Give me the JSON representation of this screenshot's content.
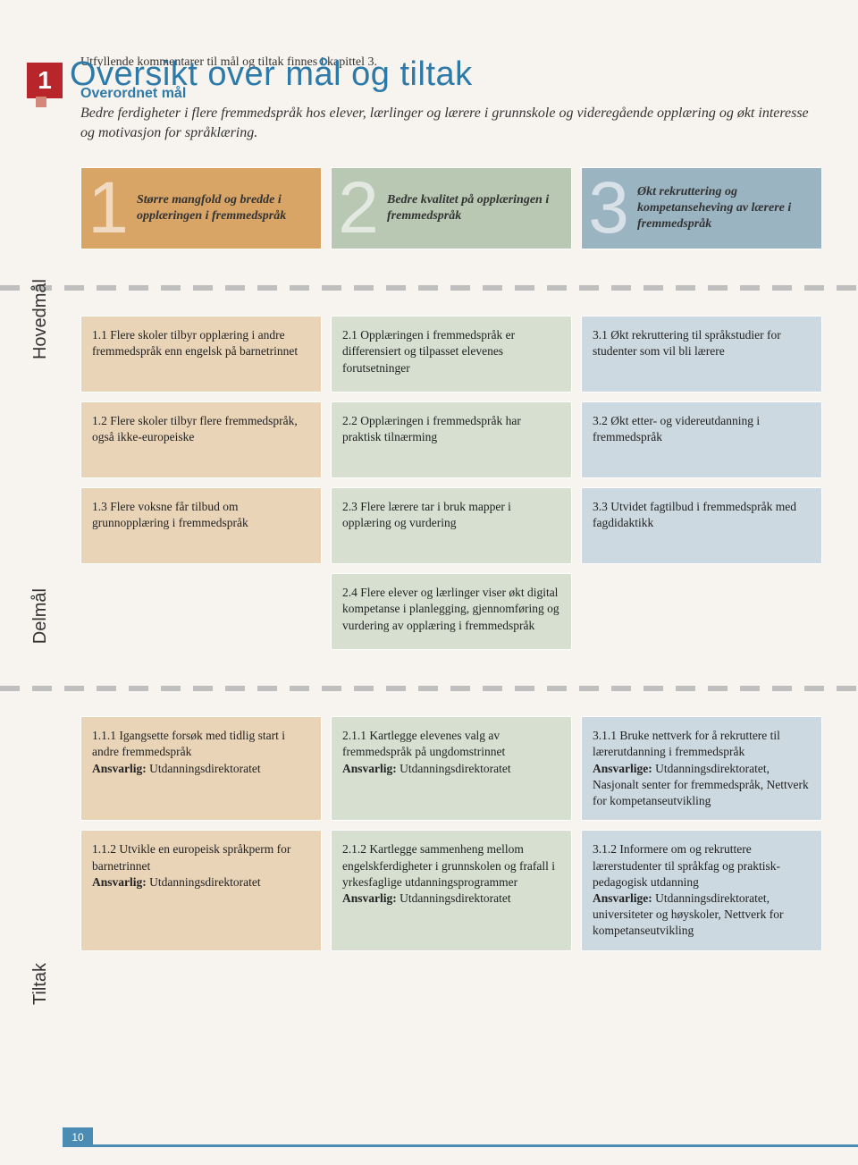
{
  "chapter_number": "1",
  "chapter_title": "Oversikt over mål og tiltak",
  "subtitle": "Utfyllende kommentarer til mål og tiltak finnes i kapittel 3.",
  "overordnet": {
    "label": "Overordnet mål",
    "body": "Bedre ferdigheter i flere fremmedspråk hos elever, lærlinger og lærere i grunnskole og videregående opplæring og økt interesse og motivasjon for språklæring."
  },
  "vertical_labels": {
    "hovedmal": "Hovedmål",
    "delmal": "Delmål",
    "tiltak": "Tiltak"
  },
  "goals": [
    {
      "num": "1",
      "text": "Større mangfold og bredde i opplæringen i fremmedspråk"
    },
    {
      "num": "2",
      "text": "Bedre kvalitet på opplæringen i fremmedspråk"
    },
    {
      "num": "3",
      "text": "Økt rekruttering og kompetanseheving av lærere i fremmedspråk"
    }
  ],
  "colors": {
    "goal_bg": [
      "#d9a566",
      "#b9c8b3",
      "#9bb4c2"
    ],
    "cell_bg": [
      "#e9d4b8",
      "#d7dfd1",
      "#cdd9e0"
    ],
    "accent_red": "#b8252a",
    "accent_blue": "#2d7aa8",
    "page_bg": "#f7f4f0",
    "footer_blue": "#4b8cb5"
  },
  "delmal_rows": [
    [
      "1.1 Flere skoler tilbyr opplæring i andre fremmedspråk enn engelsk på barnetrinnet",
      "2.1 Opplæringen i fremmedspråk er differensiert og tilpasset elevenes forutsetninger",
      "3.1 Økt rekruttering til språkstudier for studenter som vil bli lærere"
    ],
    [
      "1.2 Flere skoler tilbyr flere fremmedspråk, også ikke-europeiske",
      "2.2 Opplæringen i fremmedspråk har praktisk tilnærming",
      "3.2 Økt etter- og videreutdanning i fremmedspråk"
    ],
    [
      "1.3 Flere voksne får tilbud om grunnopplæring i fremmedspråk",
      "2.3 Flere lærere tar i bruk mapper i opplæring og vurdering",
      "3.3 Utvidet fagtilbud i fremmedspråk med fagdidaktikk"
    ],
    [
      "",
      "2.4 Flere elever og lærlinger viser økt digital kompetanse i planlegging, gjennomføring og vurdering av opplæring i fremmedspråk",
      ""
    ]
  ],
  "tiltak_rows": [
    [
      {
        "text": "1.1.1 Igangsette forsøk med tidlig start i andre fremmedspråk",
        "resp_label": "Ansvarlig:",
        "resp": "Utdanningsdirektoratet"
      },
      {
        "text": "2.1.1 Kartlegge elevenes valg av fremmedspråk på ungdomstrinnet",
        "resp_label": "Ansvarlig:",
        "resp": "Utdanningsdirektoratet"
      },
      {
        "text": "3.1.1 Bruke nettverk for å rekruttere til lærerutdanning i fremmedspråk",
        "resp_label": "Ansvarlige:",
        "resp": "Utdanningsdirektoratet, Nasjonalt senter for fremmedspråk, Nettverk for kompetanseutvikling"
      }
    ],
    [
      {
        "text": "1.1.2 Utvikle en europeisk språkperm for barnetrinnet",
        "resp_label": "Ansvarlig:",
        "resp": "Utdanningsdirektoratet"
      },
      {
        "text": "2.1.2 Kartlegge sammenheng mellom engelskferdigheter i grunnskolen og frafall i yrkesfaglige utdanningsprogrammer",
        "resp_label": "Ansvarlig:",
        "resp": "Utdanningsdirektoratet"
      },
      {
        "text": "3.1.2 Informere om og rekruttere lærerstudenter til språkfag og praktisk-pedagogisk utdanning",
        "resp_label": "Ansvarlige:",
        "resp": "Utdanningsdirektoratet, universiteter og høyskoler, Nettverk for kompetanseutvikling"
      }
    ]
  ],
  "page_number": "10"
}
